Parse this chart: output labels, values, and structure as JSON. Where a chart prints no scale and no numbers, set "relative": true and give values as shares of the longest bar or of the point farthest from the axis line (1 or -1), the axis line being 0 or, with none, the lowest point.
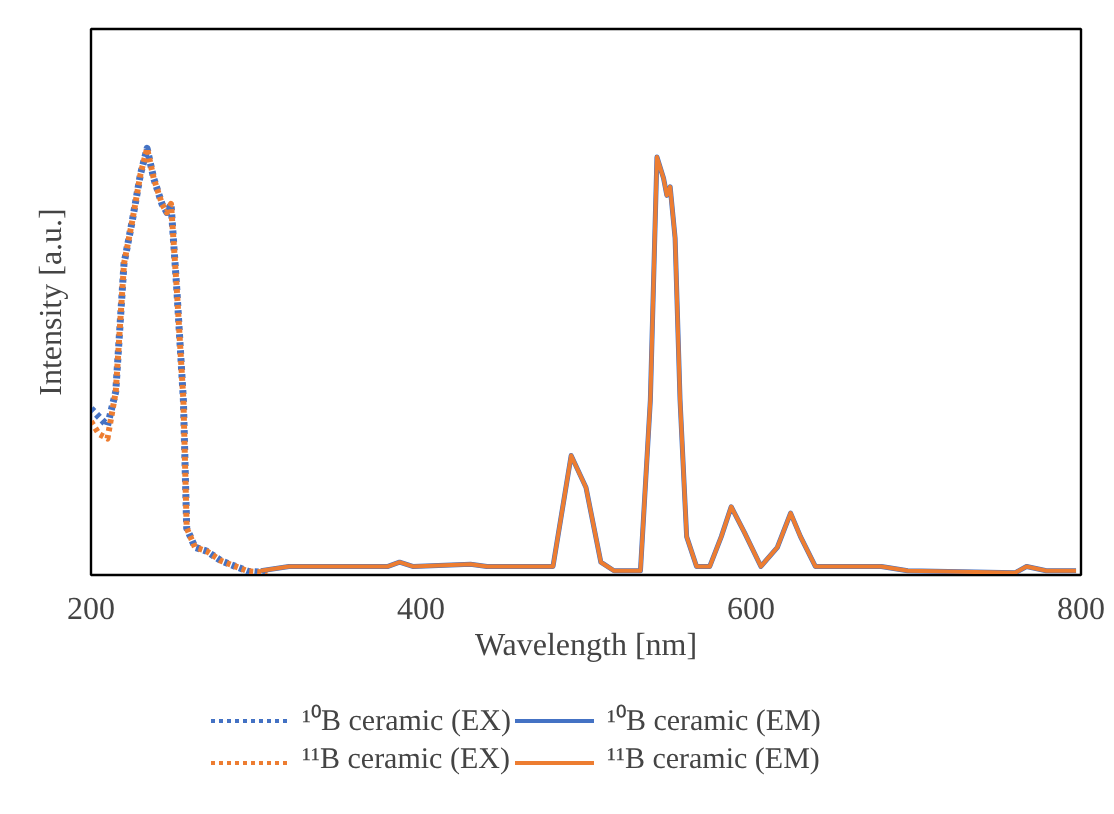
{
  "chart_data": {
    "type": "line",
    "relative": true,
    "xlabel": "Wavelength [nm]",
    "ylabel": "Intensity [a.u.]",
    "xlim": [
      200,
      800
    ],
    "xticks": [
      200,
      400,
      600,
      800
    ],
    "grid": false,
    "legend": "bottom",
    "tick_labels": "x",
    "series": [
      {
        "name": "¹⁰B ceramic (EX)",
        "color": "#4472c4",
        "line_style": "dotted",
        "x": [
          200,
          205,
          210,
          215,
          220,
          225,
          230,
          234,
          238,
          243,
          246,
          248.5,
          252,
          256,
          258,
          263,
          270,
          279,
          295,
          307
        ],
        "values": [
          0.39,
          0.37,
          0.35,
          0.43,
          0.73,
          0.83,
          0.94,
          1.0,
          0.93,
          0.87,
          0.85,
          0.87,
          0.67,
          0.41,
          0.11,
          0.065,
          0.056,
          0.033,
          0.009,
          0.005
        ]
      },
      {
        "name": "¹¹B ceramic (EX)",
        "color": "#ed7d31",
        "line_style": "dotted",
        "x": [
          200,
          205,
          210,
          215,
          220,
          225,
          230,
          234,
          238,
          243,
          246,
          248.5,
          252,
          256,
          258,
          263,
          270,
          279,
          295,
          307
        ],
        "values": [
          0.36,
          0.33,
          0.32,
          0.43,
          0.73,
          0.83,
          0.94,
          1.0,
          0.93,
          0.87,
          0.85,
          0.87,
          0.67,
          0.41,
          0.11,
          0.065,
          0.056,
          0.033,
          0.009,
          0.005
        ]
      },
      {
        "name": "¹⁰B ceramic (EM)",
        "color": "#4472c4",
        "line_style": "solid",
        "x": [
          303,
          320,
          380,
          387,
          395,
          430,
          440,
          480,
          491,
          500,
          509,
          517,
          533,
          539,
          543,
          547,
          549,
          551,
          554,
          557,
          561,
          567,
          575,
          582,
          588,
          596,
          606,
          616,
          624,
          630,
          639,
          679,
          695,
          760,
          767,
          779,
          797
        ],
        "values": [
          0.01,
          0.02,
          0.02,
          0.03,
          0.02,
          0.025,
          0.02,
          0.02,
          0.28,
          0.205,
          0.03,
          0.01,
          0.01,
          0.41,
          0.98,
          0.93,
          0.89,
          0.91,
          0.79,
          0.41,
          0.09,
          0.02,
          0.02,
          0.09,
          0.16,
          0.1,
          0.02,
          0.065,
          0.145,
          0.09,
          0.02,
          0.02,
          0.01,
          0.005,
          0.02,
          0.01,
          0.01
        ]
      },
      {
        "name": "¹¹B ceramic (EM)",
        "color": "#ed7d31",
        "line_style": "solid",
        "x": [
          303,
          320,
          380,
          387,
          395,
          430,
          440,
          480,
          491,
          500,
          509,
          517,
          533,
          539,
          543,
          547,
          549,
          551,
          554,
          557,
          561,
          567,
          575,
          582,
          588,
          596,
          606,
          616,
          624,
          630,
          639,
          679,
          695,
          760,
          767,
          779,
          797
        ],
        "values": [
          0.01,
          0.02,
          0.02,
          0.03,
          0.02,
          0.025,
          0.02,
          0.02,
          0.28,
          0.205,
          0.03,
          0.01,
          0.01,
          0.41,
          0.98,
          0.93,
          0.89,
          0.91,
          0.79,
          0.41,
          0.09,
          0.02,
          0.02,
          0.09,
          0.16,
          0.1,
          0.02,
          0.065,
          0.145,
          0.09,
          0.02,
          0.02,
          0.01,
          0.005,
          0.02,
          0.01,
          0.01
        ]
      }
    ]
  }
}
